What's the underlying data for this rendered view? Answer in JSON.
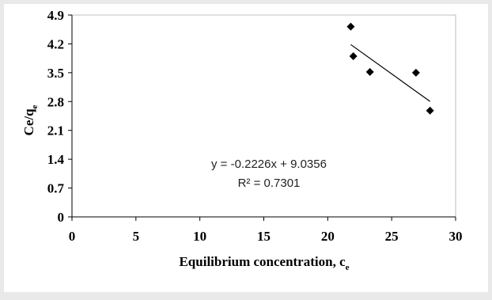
{
  "chart_data": {
    "type": "scatter",
    "title": "",
    "xlabel": {
      "main": "Equilibrium  concentration, c",
      "sub": "e"
    },
    "ylabel": {
      "main": "Ce/q",
      "sub": "e"
    },
    "xlim": [
      0,
      30
    ],
    "ylim": [
      0,
      4.9
    ],
    "x_ticks": [
      0,
      5,
      10,
      15,
      20,
      25,
      30
    ],
    "x_tick_labels": [
      "0",
      "5",
      "10",
      "15",
      "20",
      "25",
      "30"
    ],
    "y_ticks": [
      0,
      0.7,
      1.4,
      2.1,
      2.8,
      3.5,
      4.2,
      4.9
    ],
    "y_tick_labels": [
      "0",
      "0.7",
      "1.4",
      "2.1",
      "2.8",
      "3.5",
      "4.2",
      "4.9"
    ],
    "grid": false,
    "series": [
      {
        "marker": "diamond",
        "color": "#000000",
        "points": [
          {
            "x": 21.8,
            "y": 4.62
          },
          {
            "x": 22.0,
            "y": 3.9
          },
          {
            "x": 23.3,
            "y": 3.52
          },
          {
            "x": 26.9,
            "y": 3.5
          },
          {
            "x": 28.0,
            "y": 2.58
          }
        ]
      }
    ],
    "trendline": {
      "slope": -0.2226,
      "intercept": 9.0356,
      "x_range": [
        21.8,
        28.0
      ],
      "color": "#000000"
    },
    "annotations": {
      "equation": "y = -0.2226x + 9.0356",
      "r_squared": "R² = 0.7301"
    }
  }
}
